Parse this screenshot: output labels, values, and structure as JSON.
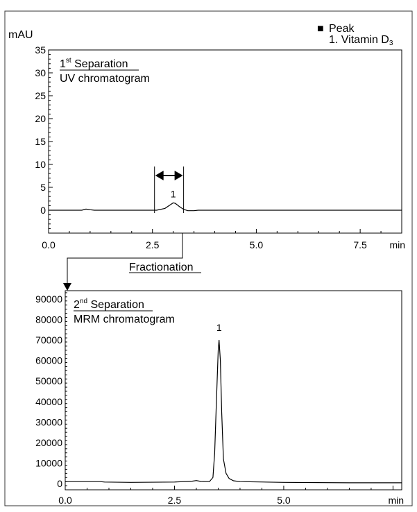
{
  "legend": {
    "marker": "■",
    "title": "Peak",
    "entry": "1. Vitamin D",
    "entry_sub": "3"
  },
  "fractionation_label": "Fractionation",
  "chart_data": [
    {
      "type": "line",
      "title_line1_main": "1",
      "title_line1_sup": "st",
      "title_line1_rest": " Separation",
      "title_line2": "UV chromatogram",
      "ylabel": "mAU",
      "xunit": "min",
      "xlim": [
        0,
        8.5
      ],
      "ylim": [
        -5,
        35
      ],
      "xticks": [
        "0.0",
        "2.5",
        "5.0",
        "7.5"
      ],
      "xtick_values": [
        0,
        2.5,
        5,
        7.5
      ],
      "yticks": [
        "0",
        "5",
        "10",
        "15",
        "20",
        "25",
        "30",
        "35"
      ],
      "ytick_values": [
        0,
        5,
        10,
        15,
        20,
        25,
        30,
        35
      ],
      "grid": false,
      "peak_label": "1",
      "peak_label_x": 3.0,
      "peak_label_y": 2.2,
      "fraction_window": [
        2.55,
        3.25
      ],
      "series": [
        {
          "x": [
            0,
            0.8,
            0.9,
            1.0,
            1.1,
            2.0,
            2.6,
            2.8,
            2.9,
            3.0,
            3.05,
            3.15,
            3.25,
            3.35,
            3.5,
            3.6,
            4.5,
            6.0,
            7.0,
            8.5
          ],
          "y": [
            0,
            0,
            0.25,
            0.1,
            0,
            0,
            0,
            0.4,
            1.0,
            1.6,
            1.5,
            0.8,
            0.2,
            -0.1,
            -0.1,
            0,
            0,
            0,
            0,
            0
          ]
        }
      ]
    },
    {
      "type": "line",
      "title_line1_main": "2",
      "title_line1_sup": "nd",
      "title_line1_rest": " Separation",
      "title_line2": "MRM chromatogram",
      "ylabel": "",
      "xunit": "min",
      "xlim": [
        0,
        7.7
      ],
      "ylim": [
        -3000,
        94000
      ],
      "xticks": [
        "0.0",
        "2.5",
        "5.0"
      ],
      "xtick_values": [
        0,
        2.5,
        5
      ],
      "yticks": [
        "0",
        "10000",
        "20000",
        "30000",
        "40000",
        "50000",
        "60000",
        "70000",
        "80000",
        "90000"
      ],
      "ytick_values": [
        0,
        10000,
        20000,
        30000,
        40000,
        50000,
        60000,
        70000,
        80000,
        90000
      ],
      "grid": false,
      "peak_label": "1",
      "peak_label_x": 3.52,
      "peak_label_y": 73000,
      "series": [
        {
          "x": [
            0,
            0.8,
            0.9,
            1.5,
            2.5,
            2.9,
            3.0,
            3.1,
            3.3,
            3.38,
            3.42,
            3.46,
            3.5,
            3.52,
            3.55,
            3.58,
            3.62,
            3.68,
            3.75,
            3.85,
            4.0,
            5.0,
            6.5,
            7.7
          ],
          "y": [
            1000,
            1000,
            800,
            600,
            800,
            1200,
            1500,
            1100,
            1000,
            3000,
            15000,
            40000,
            65000,
            70000,
            60000,
            35000,
            12000,
            5000,
            2500,
            1400,
            1000,
            600,
            400,
            400
          ]
        }
      ]
    }
  ]
}
